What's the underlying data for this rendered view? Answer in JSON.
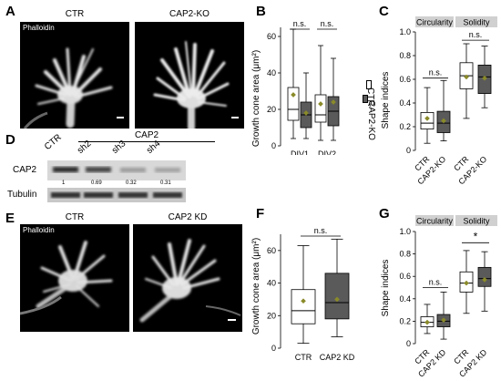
{
  "panels": {
    "A": {
      "letter": "A",
      "stain": "Phalloidin",
      "left_title": "CTR",
      "right_title": "CAP2-KO"
    },
    "B": {
      "letter": "B"
    },
    "C": {
      "letter": "C"
    },
    "D": {
      "letter": "D",
      "group_label": "CAP2",
      "lanes": [
        "CTR",
        "sh2",
        "sh3",
        "sh4"
      ],
      "rows": [
        "CAP2",
        "Tubulin"
      ],
      "quant": [
        "1",
        "0.69",
        "0.32",
        "0.31"
      ]
    },
    "E": {
      "letter": "E",
      "stain": "Phalloidin",
      "left_title": "CTR",
      "right_title": "CAP2 KD"
    },
    "F": {
      "letter": "F"
    },
    "G": {
      "letter": "G"
    }
  },
  "legend_B": {
    "ctr": "CTR",
    "ko": "CAP2-KO"
  },
  "colors": {
    "light_box": "#ffffff",
    "dark_box": "#5a5a5a",
    "mean_marker": "#8a8a2a",
    "header_bg": "#d0d0d0"
  },
  "chart_data": [
    {
      "id": "B",
      "type": "box",
      "ylabel": "Growth cone area (μm²)",
      "ylim": [
        0,
        65
      ],
      "yticks": [
        0,
        20,
        40,
        60
      ],
      "categories": [
        "DIV1",
        "DIV2"
      ],
      "series": [
        {
          "name": "CTR",
          "boxes": [
            {
              "min": 4,
              "q1": 14,
              "median": 20,
              "q3": 32,
              "max": 64,
              "mean": 28
            },
            {
              "min": 3,
              "q1": 13,
              "median": 17,
              "q3": 28,
              "max": 55,
              "mean": 23
            }
          ]
        },
        {
          "name": "CAP2-KO",
          "boxes": [
            {
              "min": 4,
              "q1": 10,
              "median": 17,
              "q3": 24,
              "max": 40,
              "mean": 18
            },
            {
              "min": 3,
              "q1": 11,
              "median": 19,
              "q3": 27,
              "max": 48,
              "mean": 24
            }
          ]
        }
      ],
      "annotations": [
        "n.s.",
        "n.s."
      ]
    },
    {
      "id": "C",
      "type": "box",
      "ylabel": "Shape indices",
      "ylim": [
        0,
        1.0
      ],
      "yticks": [
        0,
        0.2,
        0.4,
        0.6,
        0.8,
        1.0
      ],
      "ytick_labels": [
        "0",
        "0.2",
        "0.4",
        "0.6",
        "0.8",
        "1.0"
      ],
      "headers": [
        "Circularity",
        "Solidity"
      ],
      "categories": [
        "CTR",
        "CAP2-KO",
        "CTR",
        "CAP2-KO"
      ],
      "boxes": [
        {
          "min": 0.06,
          "q1": 0.18,
          "median": 0.23,
          "q3": 0.32,
          "max": 0.53,
          "mean": 0.27,
          "style": "light"
        },
        {
          "min": 0.08,
          "q1": 0.15,
          "median": 0.23,
          "q3": 0.33,
          "max": 0.59,
          "mean": 0.25,
          "style": "dark"
        },
        {
          "min": 0.27,
          "q1": 0.52,
          "median": 0.63,
          "q3": 0.74,
          "max": 0.9,
          "mean": 0.62,
          "style": "light"
        },
        {
          "min": 0.36,
          "q1": 0.48,
          "median": 0.62,
          "q3": 0.72,
          "max": 0.88,
          "mean": 0.61,
          "style": "dark"
        }
      ],
      "annotations": [
        "n.s.",
        "n.s."
      ]
    },
    {
      "id": "F",
      "type": "box",
      "ylabel": "Growth cone area (μm²)",
      "ylim": [
        0,
        70
      ],
      "yticks": [
        0,
        20,
        40,
        60
      ],
      "categories": [
        "CTR",
        "CAP2 KD"
      ],
      "boxes": [
        {
          "min": 3,
          "q1": 15,
          "median": 23,
          "q3": 36,
          "max": 63,
          "mean": 29,
          "style": "light"
        },
        {
          "min": 7,
          "q1": 18,
          "median": 28,
          "q3": 46,
          "max": 67,
          "mean": 30,
          "style": "dark"
        }
      ],
      "annotations": [
        "n.s."
      ]
    },
    {
      "id": "G",
      "type": "box",
      "ylabel": "Shape indices",
      "ylim": [
        0,
        1.0
      ],
      "yticks": [
        0,
        0.2,
        0.4,
        0.6,
        0.8,
        1.0
      ],
      "ytick_labels": [
        "0",
        "0.2",
        "0.4",
        "0.6",
        "0.8",
        "1.0"
      ],
      "headers": [
        "Circularity",
        "Solidity"
      ],
      "categories": [
        "CTR",
        "CAP2 KD",
        "CTR",
        "CAP2 KD"
      ],
      "boxes": [
        {
          "min": 0.09,
          "q1": 0.15,
          "median": 0.19,
          "q3": 0.24,
          "max": 0.35,
          "mean": 0.19,
          "style": "light"
        },
        {
          "min": 0.04,
          "q1": 0.15,
          "median": 0.2,
          "q3": 0.26,
          "max": 0.46,
          "mean": 0.21,
          "style": "dark"
        },
        {
          "min": 0.27,
          "q1": 0.46,
          "median": 0.54,
          "q3": 0.64,
          "max": 0.83,
          "mean": 0.54,
          "style": "light"
        },
        {
          "min": 0.29,
          "q1": 0.51,
          "median": 0.58,
          "q3": 0.68,
          "max": 0.82,
          "mean": 0.57,
          "style": "dark"
        }
      ],
      "annotations": [
        "n.s.",
        "*"
      ]
    }
  ]
}
